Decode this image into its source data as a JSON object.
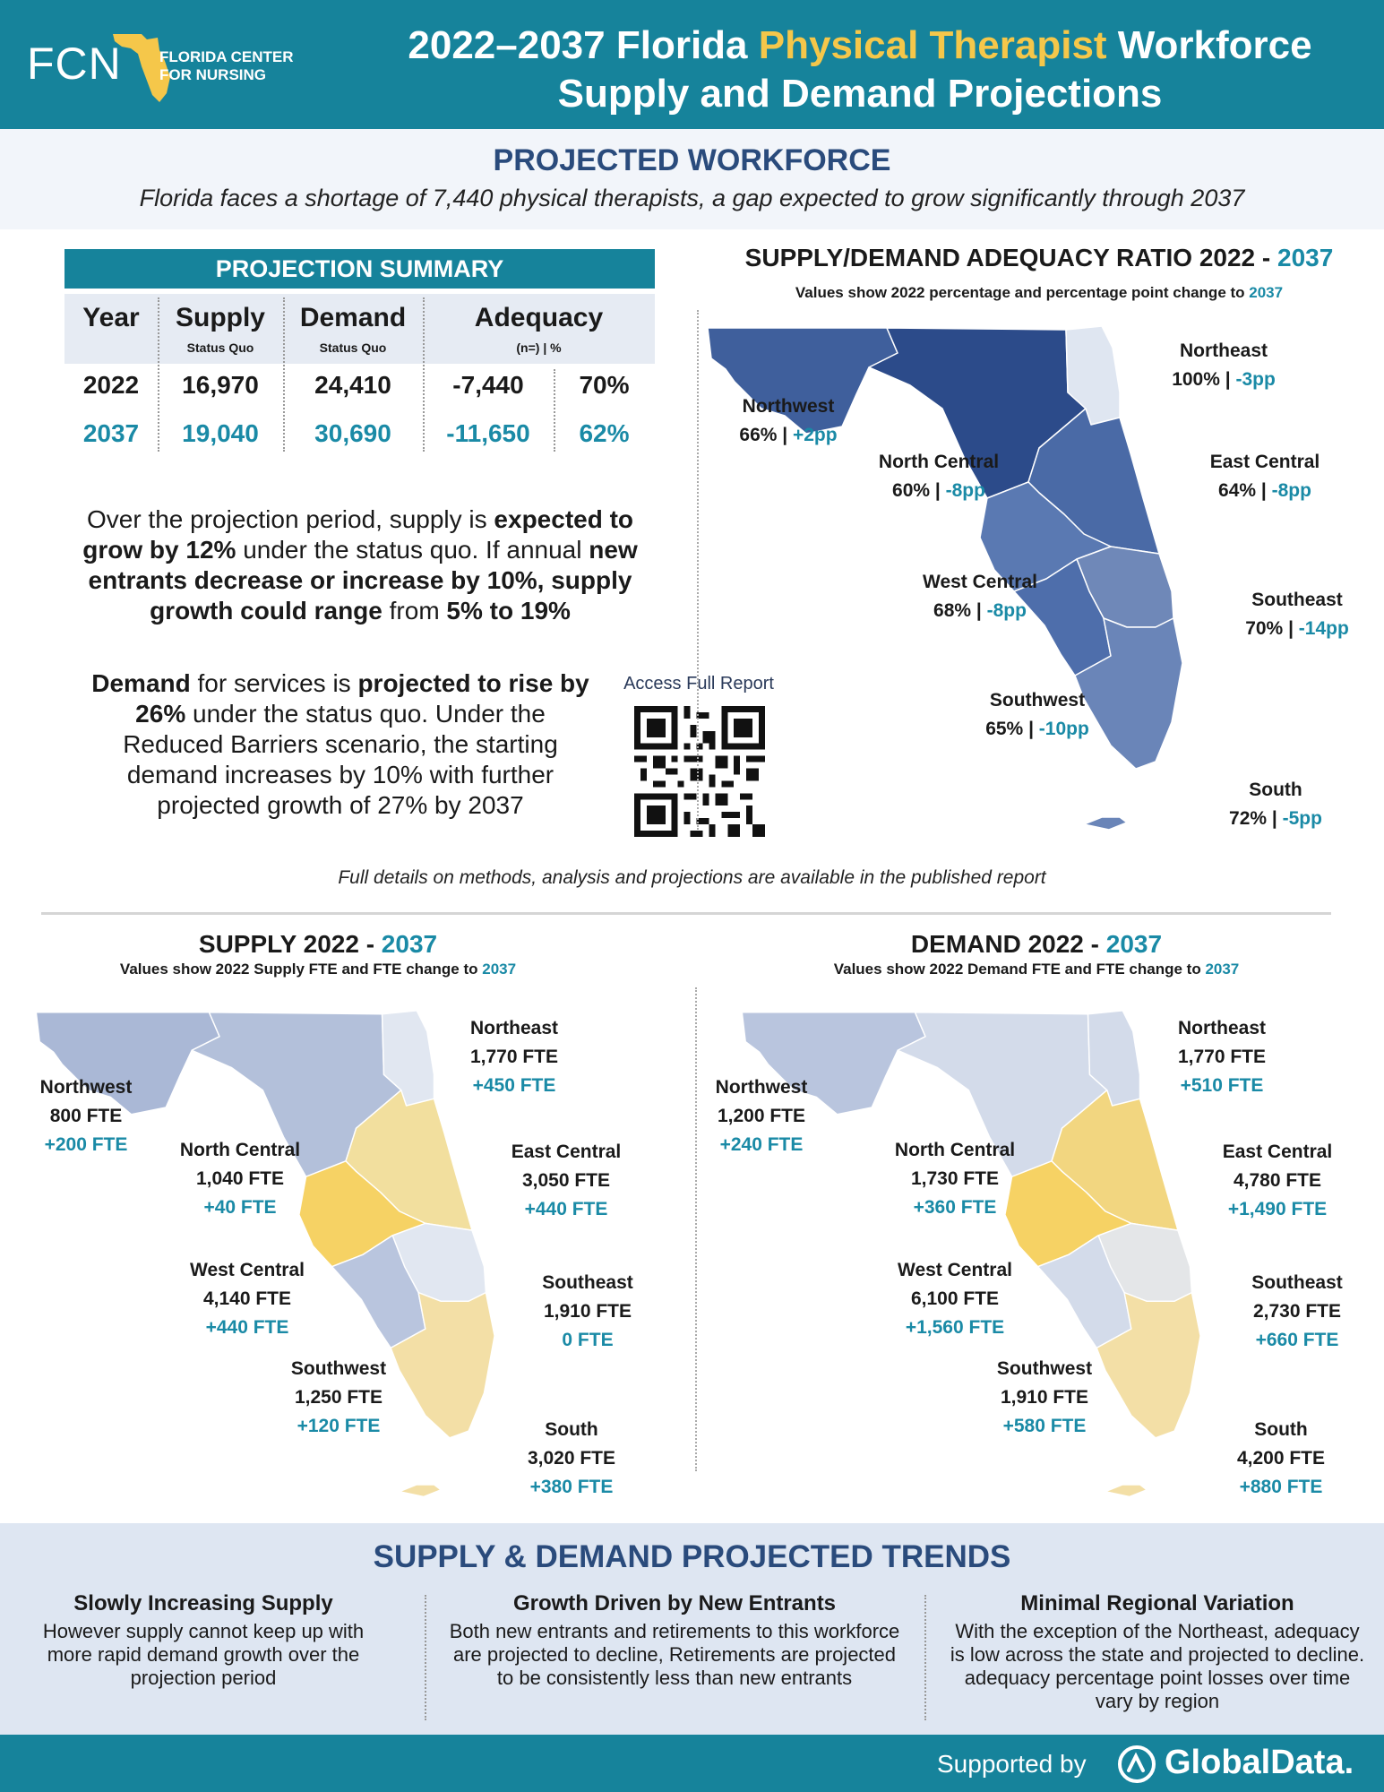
{
  "header": {
    "logo_abbr": "FCN",
    "logo_line1": "FLORIDA CENTER",
    "logo_line2": "FOR NURSING",
    "title_pre": "2022–2037 Florida ",
    "title_highlight": "Physical Therapist",
    "title_post": " Workforce",
    "title_line2": "Supply and Demand Projections"
  },
  "projected": {
    "title": "PROJECTED WORKFORCE",
    "subtitle": "Florida faces a shortage of 7,440 physical therapists, a gap expected to grow significantly through 2037"
  },
  "summary": {
    "title": "PROJECTION SUMMARY",
    "headers": [
      "Year",
      "Supply",
      "Demand",
      "Adequacy"
    ],
    "subheaders": [
      "",
      "Status Quo",
      "Status Quo",
      "(n=) | %"
    ],
    "rows": [
      [
        "2022",
        "16,970",
        "24,410",
        "-7,440",
        "70%"
      ],
      [
        "2037",
        "19,040",
        "30,690",
        "-11,650",
        "62%"
      ]
    ]
  },
  "paragraph1": {
    "p1": "Over the projection period, supply is ",
    "b1": "expected to grow by 12%",
    "p2": " under the status quo. If annual ",
    "b2": "new entrants decrease or increase by 10%, supply growth could range",
    "p3": " from ",
    "b3": "5% to 19%"
  },
  "paragraph2": {
    "b1": "Demand",
    "p1": " for services is ",
    "b2": "projected to rise by 26%",
    "p2": " under the status quo. Under the Reduced Barriers scenario, the starting demand increases by 10% with further projected growth of 27% by 2037"
  },
  "qr": {
    "label": "Access Full Report"
  },
  "footnote": "Full details on methods, analysis and projections are available in the published report",
  "adequacy_map": {
    "title_pre": "SUPPLY/DEMAND ADEQUACY RATIO 2022 - ",
    "title_year": "2037",
    "subtitle_pre": "Values show 2022 percentage and percentage point change to ",
    "subtitle_year": "2037",
    "regions": [
      {
        "name": "Northeast",
        "value": "100% | ",
        "change": "-3pp"
      },
      {
        "name": "Northwest",
        "value": "66% | ",
        "change": "+2pp"
      },
      {
        "name": "North Central",
        "value": "60% | ",
        "change": "-8pp"
      },
      {
        "name": "East Central",
        "value": "64% | ",
        "change": "-8pp"
      },
      {
        "name": "West Central",
        "value": "68% | ",
        "change": "-8pp"
      },
      {
        "name": "Southeast",
        "value": "70% | ",
        "change": "-14pp"
      },
      {
        "name": "Southwest",
        "value": "65% | ",
        "change": "-10pp"
      },
      {
        "name": "South",
        "value": "72% | ",
        "change": "-5pp"
      }
    ]
  },
  "supply_map": {
    "title_pre": "SUPPLY 2022 - ",
    "title_year": "2037",
    "subtitle_pre": "Values show 2022 Supply FTE and FTE change to ",
    "subtitle_year": "2037",
    "regions": [
      {
        "name": "Northeast",
        "value": "1,770 FTE",
        "change": "+450 FTE"
      },
      {
        "name": "Northwest",
        "value": "800 FTE",
        "change": "+200 FTE"
      },
      {
        "name": "North Central",
        "value": "1,040 FTE",
        "change": "+40 FTE"
      },
      {
        "name": "East Central",
        "value": "3,050 FTE",
        "change": "+440 FTE"
      },
      {
        "name": "West Central",
        "value": "4,140 FTE",
        "change": "+440 FTE"
      },
      {
        "name": "Southeast",
        "value": "1,910 FTE",
        "change": "0 FTE"
      },
      {
        "name": "Southwest",
        "value": "1,250 FTE",
        "change": "+120 FTE"
      },
      {
        "name": "South",
        "value": "3,020 FTE",
        "change": "+380 FTE"
      }
    ]
  },
  "demand_map": {
    "title_pre": "DEMAND 2022 - ",
    "title_year": "2037",
    "subtitle_pre": "Values show 2022 Demand FTE and FTE change to ",
    "subtitle_year": "2037",
    "regions": [
      {
        "name": "Northeast",
        "value": "1,770 FTE",
        "change": "+510 FTE"
      },
      {
        "name": "Northwest",
        "value": "1,200 FTE",
        "change": "+240 FTE"
      },
      {
        "name": "North Central",
        "value": "1,730 FTE",
        "change": "+360 FTE"
      },
      {
        "name": "East Central",
        "value": "4,780 FTE",
        "change": "+1,490 FTE"
      },
      {
        "name": "West Central",
        "value": "6,100 FTE",
        "change": "+1,560 FTE"
      },
      {
        "name": "Southeast",
        "value": "2,730 FTE",
        "change": "+660 FTE"
      },
      {
        "name": "Southwest",
        "value": "1,910 FTE",
        "change": "+580 FTE"
      },
      {
        "name": "South",
        "value": "4,200 FTE",
        "change": "+880 FTE"
      }
    ]
  },
  "colors": {
    "brand_teal": "#16839b",
    "accent_teal_text": "#1a8aa6",
    "navy": "#2a4b7c",
    "highlight_yellow": "#f5c74a"
  },
  "trends": {
    "title": "SUPPLY & DEMAND PROJECTED TRENDS",
    "items": [
      {
        "heading": "Slowly Increasing Supply",
        "body": "However supply cannot keep up with more rapid demand growth over the projection period"
      },
      {
        "heading": "Growth Driven by New Entrants",
        "body": "Both new entrants and retirements to this workforce are projected to decline, Retirements are projected to be consistently less than new entrants"
      },
      {
        "heading": "Minimal Regional Variation",
        "body": "With the exception of the Northeast, adequacy is low across the state and projected to decline. adequacy percentage point losses over time vary by region"
      }
    ]
  },
  "footer": {
    "supported_by": "Supported by",
    "brand": "GlobalData."
  }
}
